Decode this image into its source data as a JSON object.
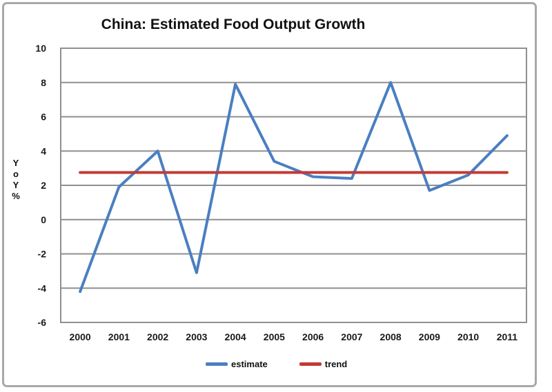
{
  "page": {
    "background_color": "#ffffff",
    "frame_border_color": "#a8a8a8"
  },
  "chart_data": {
    "type": "line",
    "title": "China: Estimated Food Output Growth",
    "xlabel": "",
    "ylabel": "YoY %",
    "categories": [
      "2000",
      "2001",
      "2002",
      "2003",
      "2004",
      "2005",
      "2006",
      "2007",
      "2008",
      "2009",
      "2010",
      "2011"
    ],
    "series": [
      {
        "name": "estimate",
        "color": "#4a7fc1",
        "values": [
          -4.2,
          1.9,
          4.0,
          -3.1,
          7.9,
          3.4,
          2.5,
          2.4,
          8.0,
          1.7,
          2.6,
          4.9
        ]
      },
      {
        "name": "trend",
        "color": "#c23a34",
        "values": [
          2.75,
          2.75,
          2.75,
          2.75,
          2.75,
          2.75,
          2.75,
          2.75,
          2.75,
          2.75,
          2.75,
          2.75
        ]
      }
    ],
    "ylim": [
      -6,
      10
    ],
    "ytick_step": 2,
    "yticks": [
      10,
      8,
      6,
      4,
      2,
      0,
      -2,
      -4,
      -6
    ],
    "grid": true,
    "gridline_color": "#8f8f8f",
    "axis_text_color": "#1a1a1a",
    "legend_position": "bottom"
  }
}
